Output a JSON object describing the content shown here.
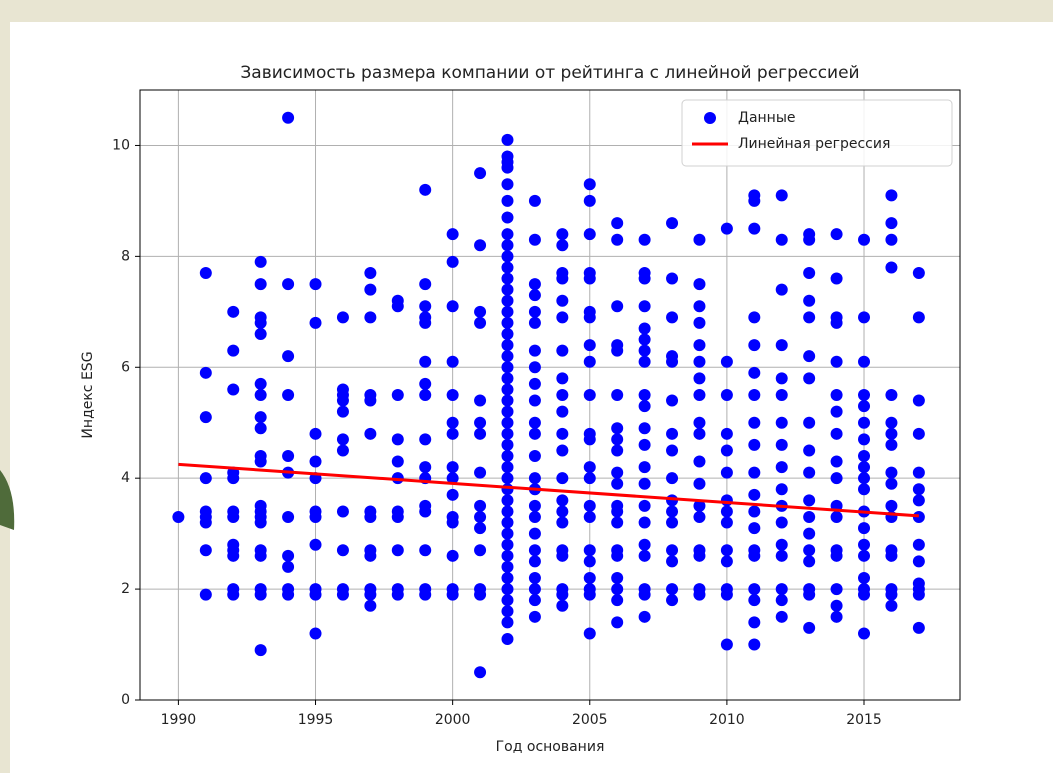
{
  "chart_data": {
    "type": "scatter",
    "title": "Зависимость размера компании от рейтинга с линейной регрессией",
    "xlabel": "Год основания",
    "ylabel": "Индекс ESG",
    "xlim": [
      1988.6,
      2018.5
    ],
    "ylim": [
      0,
      11
    ],
    "xticks": [
      1990,
      1995,
      2000,
      2005,
      2010,
      2015
    ],
    "yticks": [
      0,
      2,
      4,
      6,
      8,
      10
    ],
    "grid": true,
    "legend": "upper right",
    "series": [
      {
        "name": "Данные",
        "type": "scatter",
        "color": "#0000ff",
        "x": [
          1990,
          1991,
          1991,
          1991,
          1991,
          1991,
          1991,
          1991,
          1991,
          1991,
          1992,
          1992,
          1992,
          1992,
          1992,
          1992,
          1992,
          1992,
          1992,
          1992,
          1992,
          1992,
          1993,
          1993,
          1993,
          1993,
          1993,
          1993,
          1993,
          1993,
          1993,
          1993,
          1993,
          1993,
          1993,
          1993,
          1993,
          1993,
          1993,
          1993,
          1993,
          1993,
          1994,
          1994,
          1994,
          1994,
          1994,
          1994,
          1994,
          1994,
          1994,
          1994,
          1994,
          1995,
          1995,
          1995,
          1995,
          1995,
          1995,
          1995,
          1995,
          1995,
          1995,
          1995,
          1996,
          1996,
          1996,
          1996,
          1996,
          1996,
          1996,
          1996,
          1996,
          1996,
          1996,
          1997,
          1997,
          1997,
          1997,
          1997,
          1997,
          1997,
          1997,
          1997,
          1997,
          1997,
          1997,
          1997,
          1998,
          1998,
          1998,
          1998,
          1998,
          1998,
          1998,
          1998,
          1998,
          1998,
          1998,
          1999,
          1999,
          1999,
          1999,
          1999,
          1999,
          1999,
          1999,
          1999,
          1999,
          1999,
          1999,
          1999,
          1999,
          1999,
          1999,
          2000,
          2000,
          2000,
          2000,
          2000,
          2000,
          2000,
          2000,
          2000,
          2000,
          2000,
          2000,
          2000,
          2000,
          2000,
          2001,
          2001,
          2001,
          2001,
          2001,
          2001,
          2001,
          2001,
          2001,
          2001,
          2001,
          2001,
          2001,
          2001,
          2001,
          2002,
          2002,
          2002,
          2002,
          2002,
          2002,
          2002,
          2002,
          2002,
          2002,
          2002,
          2002,
          2002,
          2002,
          2002,
          2002,
          2002,
          2002,
          2002,
          2002,
          2002,
          2002,
          2002,
          2002,
          2002,
          2002,
          2002,
          2002,
          2002,
          2002,
          2002,
          2002,
          2002,
          2002,
          2002,
          2002,
          2002,
          2002,
          2002,
          2002,
          2002,
          2002,
          2002,
          2002,
          2003,
          2003,
          2003,
          2003,
          2003,
          2003,
          2003,
          2003,
          2003,
          2003,
          2003,
          2003,
          2003,
          2003,
          2003,
          2003,
          2003,
          2003,
          2003,
          2003,
          2003,
          2003,
          2003,
          2003,
          2004,
          2004,
          2004,
          2004,
          2004,
          2004,
          2004,
          2004,
          2004,
          2004,
          2004,
          2004,
          2004,
          2004,
          2004,
          2004,
          2004,
          2004,
          2004,
          2004,
          2004,
          2005,
          2005,
          2005,
          2005,
          2005,
          2005,
          2005,
          2005,
          2005,
          2005,
          2005,
          2005,
          2005,
          2005,
          2005,
          2005,
          2005,
          2005,
          2005,
          2005,
          2005,
          2005,
          2006,
          2006,
          2006,
          2006,
          2006,
          2006,
          2006,
          2006,
          2006,
          2006,
          2006,
          2006,
          2006,
          2006,
          2006,
          2006,
          2006,
          2006,
          2006,
          2006,
          2007,
          2007,
          2007,
          2007,
          2007,
          2007,
          2007,
          2007,
          2007,
          2007,
          2007,
          2007,
          2007,
          2007,
          2007,
          2007,
          2007,
          2007,
          2007,
          2007,
          2007,
          2008,
          2008,
          2008,
          2008,
          2008,
          2008,
          2008,
          2008,
          2008,
          2008,
          2008,
          2008,
          2008,
          2008,
          2008,
          2008,
          2009,
          2009,
          2009,
          2009,
          2009,
          2009,
          2009,
          2009,
          2009,
          2009,
          2009,
          2009,
          2009,
          2009,
          2009,
          2009,
          2009,
          2009,
          2010,
          2010,
          2010,
          2010,
          2010,
          2010,
          2010,
          2010,
          2010,
          2010,
          2010,
          2010,
          2010,
          2010,
          2011,
          2011,
          2011,
          2011,
          2011,
          2011,
          2011,
          2011,
          2011,
          2011,
          2011,
          2011,
          2011,
          2011,
          2011,
          2011,
          2011,
          2011,
          2011,
          2012,
          2012,
          2012,
          2012,
          2012,
          2012,
          2012,
          2012,
          2012,
          2012,
          2012,
          2012,
          2012,
          2012,
          2012,
          2012,
          2012,
          2013,
          2013,
          2013,
          2013,
          2013,
          2013,
          2013,
          2013,
          2013,
          2013,
          2013,
          2013,
          2013,
          2013,
          2013,
          2013,
          2013,
          2013,
          2014,
          2014,
          2014,
          2014,
          2014,
          2014,
          2014,
          2014,
          2014,
          2014,
          2014,
          2014,
          2014,
          2014,
          2014,
          2014,
          2014,
          2015,
          2015,
          2015,
          2015,
          2015,
          2015,
          2015,
          2015,
          2015,
          2015,
          2015,
          2015,
          2015,
          2015,
          2015,
          2015,
          2015,
          2015,
          2015,
          2016,
          2016,
          2016,
          2016,
          2016,
          2016,
          2016,
          2016,
          2016,
          2016,
          2016,
          2016,
          2016,
          2016,
          2016,
          2016,
          2016,
          2017,
          2017,
          2017,
          2017,
          2017,
          2017,
          2017,
          2017,
          2017,
          2017,
          2017,
          2017,
          2017,
          2017
        ],
        "values": [
          3.3,
          7.7,
          5.9,
          5.1,
          4.0,
          3.4,
          3.3,
          3.2,
          2.7,
          1.9,
          7.0,
          6.3,
          5.6,
          4.1,
          4.0,
          3.4,
          3.3,
          2.8,
          2.7,
          2.6,
          2.0,
          1.9,
          7.9,
          7.5,
          6.9,
          6.8,
          6.6,
          5.7,
          5.5,
          5.1,
          4.9,
          4.4,
          4.3,
          3.5,
          3.4,
          3.3,
          3.2,
          2.7,
          2.6,
          2.0,
          1.9,
          0.9,
          10.5,
          7.5,
          6.2,
          5.5,
          4.4,
          4.1,
          3.3,
          2.6,
          2.4,
          2.0,
          1.9,
          7.5,
          6.8,
          4.8,
          4.3,
          4.0,
          3.4,
          3.3,
          2.8,
          2.0,
          1.9,
          1.2,
          6.9,
          5.6,
          5.5,
          5.4,
          5.2,
          4.7,
          4.5,
          3.4,
          2.7,
          2.0,
          1.9,
          7.7,
          7.4,
          6.9,
          5.5,
          5.4,
          4.8,
          3.4,
          3.3,
          2.7,
          2.6,
          2.0,
          1.9,
          1.7,
          7.2,
          7.1,
          5.5,
          4.7,
          4.3,
          4.0,
          3.4,
          3.3,
          2.7,
          2.0,
          1.9,
          9.2,
          7.5,
          7.1,
          6.9,
          6.8,
          6.1,
          5.7,
          5.5,
          4.7,
          4.2,
          4.0,
          3.5,
          3.4,
          2.7,
          2.0,
          1.9,
          8.4,
          7.9,
          7.1,
          6.1,
          5.5,
          5.0,
          4.8,
          4.2,
          4.0,
          3.7,
          3.3,
          3.2,
          2.6,
          2.0,
          1.9,
          9.5,
          8.2,
          7.0,
          6.8,
          5.4,
          5.0,
          4.8,
          4.1,
          3.5,
          3.3,
          3.1,
          2.7,
          2.0,
          1.9,
          0.5,
          10.1,
          9.8,
          9.7,
          9.6,
          9.3,
          9.0,
          8.7,
          8.4,
          8.2,
          8.0,
          7.8,
          7.6,
          7.4,
          7.2,
          7.0,
          6.8,
          6.6,
          6.4,
          6.2,
          6.0,
          5.8,
          5.6,
          5.4,
          5.2,
          5.0,
          4.8,
          4.6,
          4.4,
          4.2,
          4.0,
          3.8,
          3.6,
          3.4,
          3.2,
          3.0,
          2.8,
          2.6,
          2.4,
          2.2,
          2.0,
          1.8,
          1.6,
          1.4,
          1.1,
          9.0,
          8.3,
          7.5,
          7.3,
          7.0,
          6.8,
          6.3,
          6.0,
          5.7,
          5.4,
          5.0,
          4.8,
          4.4,
          4.0,
          3.8,
          3.5,
          3.3,
          3.0,
          2.7,
          2.5,
          2.2,
          2.0,
          1.8,
          1.5,
          8.4,
          8.2,
          7.7,
          7.6,
          7.2,
          6.9,
          6.3,
          5.8,
          5.5,
          5.2,
          4.8,
          4.5,
          4.0,
          3.6,
          3.4,
          3.2,
          2.7,
          2.6,
          2.0,
          1.9,
          1.7,
          9.3,
          9.0,
          8.4,
          7.7,
          7.6,
          7.0,
          6.9,
          6.4,
          6.1,
          5.5,
          4.8,
          4.7,
          4.2,
          4.0,
          3.5,
          3.3,
          2.7,
          2.5,
          2.2,
          2.0,
          1.9,
          1.2,
          8.6,
          8.3,
          7.1,
          6.4,
          6.3,
          5.5,
          4.9,
          4.7,
          4.5,
          4.1,
          3.9,
          3.5,
          3.4,
          3.2,
          2.7,
          2.6,
          2.2,
          2.0,
          1.8,
          1.4,
          8.3,
          7.7,
          7.6,
          7.1,
          6.7,
          6.5,
          6.3,
          6.1,
          5.5,
          5.3,
          4.9,
          4.6,
          4.2,
          3.9,
          3.5,
          3.2,
          2.8,
          2.6,
          2.0,
          1.9,
          1.5,
          8.6,
          7.6,
          6.9,
          6.2,
          6.1,
          5.4,
          4.8,
          4.5,
          4.0,
          3.6,
          3.4,
          3.2,
          2.7,
          2.5,
          2.0,
          1.8,
          8.3,
          7.5,
          7.1,
          6.8,
          6.4,
          6.1,
          5.8,
          5.5,
          5.0,
          4.8,
          4.3,
          3.9,
          3.5,
          3.3,
          2.7,
          2.6,
          2.0,
          1.9,
          8.5,
          6.1,
          5.5,
          4.8,
          4.5,
          4.1,
          3.6,
          3.4,
          3.2,
          2.7,
          2.5,
          2.0,
          1.9,
          1.0,
          9.1,
          9.0,
          8.5,
          6.9,
          6.4,
          5.9,
          5.5,
          5.0,
          4.6,
          4.1,
          3.7,
          3.4,
          3.1,
          2.7,
          2.6,
          2.0,
          1.8,
          1.4,
          1.0,
          9.1,
          8.3,
          7.4,
          6.4,
          5.8,
          5.5,
          5.0,
          4.6,
          4.2,
          3.8,
          3.5,
          3.2,
          2.8,
          2.6,
          2.0,
          1.8,
          1.5,
          8.4,
          8.3,
          7.7,
          7.2,
          6.9,
          6.2,
          5.8,
          5.0,
          4.5,
          4.1,
          3.6,
          3.3,
          3.0,
          2.7,
          2.5,
          2.0,
          1.9,
          1.3,
          8.4,
          7.6,
          6.9,
          6.8,
          6.1,
          5.5,
          5.2,
          4.8,
          4.3,
          4.0,
          3.5,
          3.3,
          2.7,
          2.6,
          2.0,
          1.7,
          1.5,
          8.3,
          6.9,
          6.1,
          5.5,
          5.3,
          5.0,
          4.7,
          4.4,
          4.2,
          4.0,
          3.8,
          3.4,
          3.1,
          2.8,
          2.6,
          2.2,
          2.0,
          1.9,
          1.2,
          9.1,
          8.6,
          8.3,
          7.8,
          5.5,
          5.0,
          4.8,
          4.6,
          4.1,
          3.9,
          3.5,
          3.3,
          2.7,
          2.6,
          2.0,
          1.9,
          1.7,
          7.7,
          6.9,
          5.4,
          4.8,
          4.1,
          3.8,
          3.6,
          3.3,
          2.8,
          2.5,
          2.1,
          2.0,
          1.9,
          1.3
        ]
      },
      {
        "name": "Линейная регрессия",
        "type": "line",
        "color": "#ff0000",
        "x": [
          1990,
          2017
        ],
        "values": [
          4.25,
          3.32
        ]
      }
    ]
  }
}
